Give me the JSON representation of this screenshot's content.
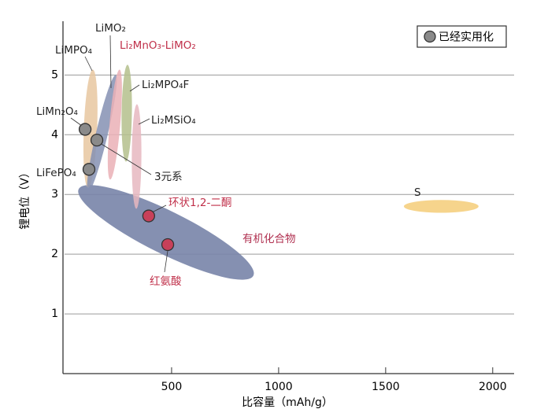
{
  "chart_data": {
    "type": "scatter",
    "xlabel": "比容量（mAh/g）",
    "ylabel": "锂电位（V）",
    "xlim": [
      0,
      2100
    ],
    "ylim": [
      0,
      5.9
    ],
    "xticks": [
      500,
      1000,
      1500,
      2000
    ],
    "yticks": [
      1,
      2,
      3,
      4,
      5
    ],
    "grid": true,
    "legend": {
      "label": "已经实用化",
      "color": "#8a8a8a",
      "position": "top-right"
    },
    "regions": [
      {
        "name": "LiMPO₄",
        "color": "#e8c7a0",
        "label_color": "#222222",
        "x": [
          132,
          110
        ],
        "y": [
          5.09,
          3.11
        ],
        "width": 62
      },
      {
        "name": "LiMO₂",
        "color": "#8591b3",
        "label_color": "#222222",
        "x": [
          239,
          110
        ],
        "y": [
          5.0,
          3.04
        ],
        "width": 55
      },
      {
        "name": "Li₂MnO₃-LiMO₂",
        "color": "#eab0b6",
        "label_color": "#c0304a",
        "x": [
          257,
          213
        ],
        "y": [
          5.09,
          3.25
        ],
        "width": 50
      },
      {
        "name": "Li₂MPO₄F",
        "color": "#b4bf8c",
        "label_color": "#222222",
        "x": [
          294,
          287
        ],
        "y": [
          5.17,
          3.55
        ],
        "width": 48
      },
      {
        "name": "Li₂MSiO₄",
        "color": "#e6b7bf",
        "label_color": "#222222",
        "x": [
          338,
          335
        ],
        "y": [
          4.51,
          2.76
        ],
        "width": 45
      },
      {
        "name": "有机化合物",
        "color": "#7884a8",
        "label_color": "#b03050",
        "x": [
          66,
          882
        ],
        "y": [
          3.09,
          1.64
        ],
        "width": 200
      },
      {
        "name": "S",
        "color": "#f5cd78",
        "label_color": "#222222",
        "x": [
          1585,
          1934
        ],
        "y": [
          2.8,
          2.8
        ],
        "width": 60
      }
    ],
    "points": [
      {
        "name": "LiMn₂O₄",
        "color": "#8a8a8a",
        "label_color": "#222222",
        "x": 96,
        "y": 4.09
      },
      {
        "name": "3元系",
        "color": "#8a8a8a",
        "label_color": "#222222",
        "x": 151,
        "y": 3.91
      },
      {
        "name": "LiFePO₄",
        "color": "#8a8a8a",
        "label_color": "#222222",
        "x": 114,
        "y": 3.42
      },
      {
        "name": "环状1,2-二酮",
        "color": "#c8405a",
        "label_color": "#c0304a",
        "x": 393,
        "y": 2.64
      },
      {
        "name": "红氨酸",
        "color": "#c8405a",
        "label_color": "#c0304a",
        "x": 482,
        "y": 2.16
      }
    ]
  }
}
